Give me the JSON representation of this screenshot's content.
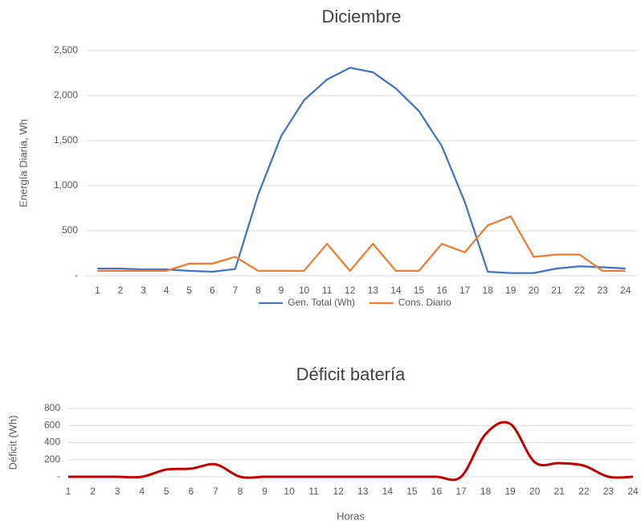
{
  "chart_data": [
    {
      "type": "line",
      "title": "Diciembre",
      "y_label": "Energía Diaria, Wh",
      "categories": [
        "1",
        "2",
        "3",
        "4",
        "5",
        "6",
        "7",
        "8",
        "9",
        "10",
        "11",
        "12",
        "13",
        "14",
        "15",
        "16",
        "17",
        "18",
        "19",
        "20",
        "21",
        "22",
        "23",
        "24"
      ],
      "series": [
        {
          "name": "Gen. Total (Wh)",
          "color": "#4472c4",
          "values": [
            80,
            80,
            70,
            70,
            55,
            45,
            75,
            900,
            1550,
            1950,
            2180,
            2310,
            2260,
            2080,
            1830,
            1440,
            820,
            45,
            30,
            30,
            80,
            105,
            95,
            80
          ]
        },
        {
          "name": "Cons. Diario",
          "color": "#ed7d31",
          "values": [
            55,
            55,
            55,
            55,
            135,
            135,
            210,
            55,
            55,
            55,
            355,
            55,
            355,
            55,
            55,
            355,
            260,
            560,
            660,
            210,
            235,
            235,
            55,
            55
          ]
        }
      ],
      "ylim": [
        0,
        2500
      ],
      "yticks": [
        {
          "value": 0,
          "label": "-"
        },
        500,
        {
          "value": 1000,
          "label": "1,000"
        },
        {
          "value": 1500,
          "label": "1,500"
        },
        {
          "value": 2000,
          "label": "2,000"
        },
        {
          "value": 2500,
          "label": "2,500"
        }
      ],
      "grid": true,
      "legend": "bottom"
    },
    {
      "type": "line",
      "title": "Déficit batería",
      "y_label": "Déficit (Wh)",
      "x_label": "Horas",
      "categories": [
        "1",
        "2",
        "3",
        "4",
        "5",
        "6",
        "7",
        "8",
        "9",
        "10",
        "11",
        "12",
        "13",
        "14",
        "15",
        "16",
        "17",
        "18",
        "19",
        "20",
        "21",
        "22",
        "23",
        "24"
      ],
      "series": [
        {
          "name": "Déficit",
          "color": "#c00000",
          "smooth": true,
          "values": [
            0,
            0,
            0,
            0,
            85,
            95,
            145,
            0,
            0,
            0,
            0,
            0,
            0,
            0,
            0,
            0,
            0,
            500,
            620,
            170,
            160,
            130,
            0,
            0
          ]
        }
      ],
      "ylim": [
        0,
        800
      ],
      "yticks": [
        {
          "value": 0,
          "label": "-"
        },
        200,
        400,
        600,
        800
      ],
      "grid": true
    }
  ]
}
